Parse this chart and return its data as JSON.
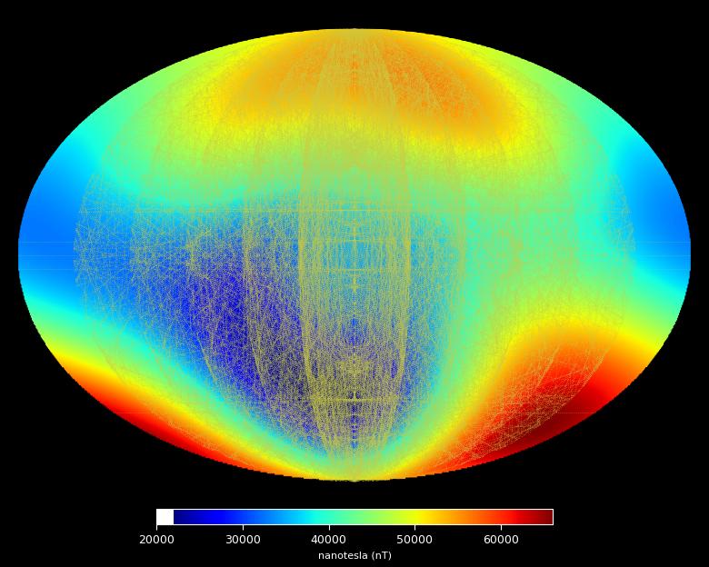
{
  "colorbar_label": "nanotesla (nT)",
  "colorbar_ticks": [
    20000,
    30000,
    40000,
    50000,
    60000
  ],
  "vmin": 22000,
  "vmax": 66000,
  "background_color": "#000000",
  "grid_color": "#cccc44",
  "coastline_color": "#000000",
  "colormap": "jet",
  "figsize": [
    7.8,
    6.24
  ],
  "dpi": 100,
  "grid_alpha": 0.55,
  "grid_lw": 0.5,
  "coast_lw": 0.8
}
